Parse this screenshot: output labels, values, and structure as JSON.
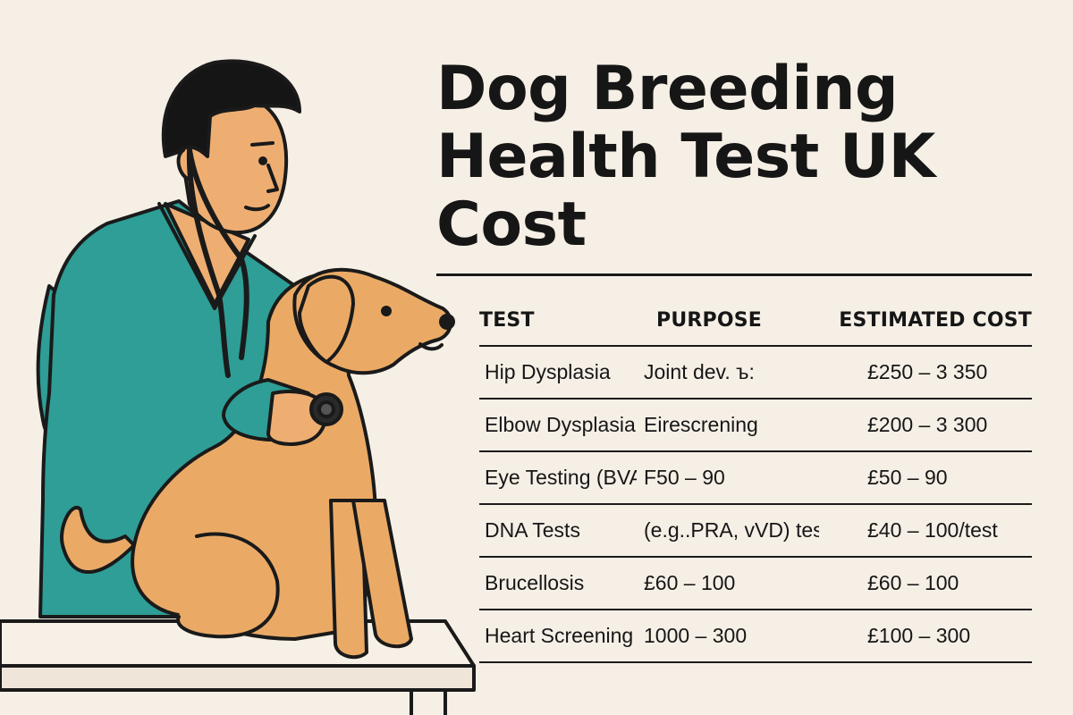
{
  "title_lines": [
    "Dog Breeding",
    "Health Test UK",
    "Cost"
  ],
  "table": {
    "headers": {
      "test": "TEST",
      "purpose": "PURPOSE",
      "cost": "ESTIMATED COST"
    },
    "rows": [
      {
        "test": "Hip Dysplasia",
        "purpose": "Joint dev. ъ:",
        "cost": "£250 – 3 350"
      },
      {
        "test": "Elbow Dysplasia",
        "purpose": "Eirescrening",
        "cost": "£200 – 3 300"
      },
      {
        "test": "Eye Testing (BVA",
        "purpose": "F50 – 90",
        "cost": "£50 – 90"
      },
      {
        "test": "DNA Tests",
        "purpose": "(e.g..PRA, vVD) test",
        "cost": "£40 – 100/test"
      },
      {
        "test": "Brucellosis",
        "purpose": "£60 – 100",
        "cost": "£60 – 100"
      },
      {
        "test": "Heart Screening",
        "purpose": "1000 – 300",
        "cost": "£100 – 300"
      }
    ]
  },
  "illustration": {
    "subject": "veterinarian-examining-dog-with-stethoscope",
    "colors": {
      "background": "#f6efe6",
      "scrubs": "#2e9e96",
      "skin": "#eeae72",
      "hair": "#151515",
      "dog": "#eaaa66",
      "table": "#f7f0e6",
      "outline": "#1a1a1a"
    }
  }
}
